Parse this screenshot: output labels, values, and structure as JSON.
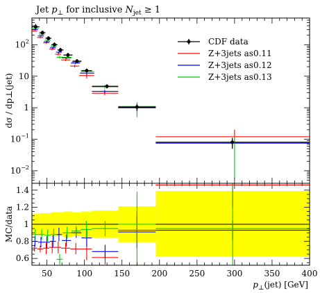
{
  "chart_data": [
    {
      "type": "scatter",
      "panel": "main",
      "title": "Jet p⊥ for inclusive Nⱼₑₜ ≥ 1",
      "title_parts": [
        "Jet ",
        "p",
        "⊥",
        " for inclusive ",
        "N",
        "jet",
        " ≥ 1"
      ],
      "ylabel": "dσ / dp⊥(jet)",
      "yscale": "log",
      "ylim": [
        0.004,
        700
      ],
      "xlim": [
        30,
        400
      ],
      "ytick_labels": [
        "10⁻²",
        "10⁻¹",
        "1",
        "10",
        "10²"
      ],
      "y_ticks": [
        {
          "value": 0.01,
          "base": "10",
          "exp": "−2"
        },
        {
          "value": 0.1,
          "base": "10",
          "exp": "−1"
        },
        {
          "value": 1,
          "base": "1",
          "exp": ""
        },
        {
          "value": 10,
          "base": "10",
          "exp": ""
        },
        {
          "value": 100,
          "base": "10",
          "exp": "2"
        }
      ],
      "legend_position": "top-right",
      "series": [
        {
          "name": "CDF data",
          "color": "#000000",
          "marker": "circle",
          "points": [
            {
              "x": 35,
              "xlo": 30,
              "xhi": 40,
              "y": 370,
              "ylo": 300,
              "yhi": 450
            },
            {
              "x": 44,
              "xlo": 40,
              "xhi": 48,
              "y": 240,
              "ylo": 205,
              "yhi": 280
            },
            {
              "x": 52,
              "xlo": 48,
              "xhi": 56,
              "y": 160,
              "ylo": 135,
              "yhi": 185
            },
            {
              "x": 60,
              "xlo": 56,
              "xhi": 64,
              "y": 100,
              "ylo": 85,
              "yhi": 118
            },
            {
              "x": 68,
              "xlo": 64,
              "xhi": 72,
              "y": 68,
              "ylo": 58,
              "yhi": 80
            },
            {
              "x": 78,
              "xlo": 72,
              "xhi": 84,
              "y": 47,
              "ylo": 40,
              "yhi": 55
            },
            {
              "x": 90,
              "xlo": 84,
              "xhi": 96,
              "y": 30,
              "ylo": 26,
              "yhi": 35
            },
            {
              "x": 103,
              "xlo": 96,
              "xhi": 110,
              "y": 15,
              "ylo": 13,
              "yhi": 17.5
            },
            {
              "x": 130,
              "xlo": 110,
              "xhi": 145,
              "y": 4.8,
              "ylo": 4.1,
              "yhi": 5.5
            },
            {
              "x": 170,
              "xlo": 145,
              "xhi": 195,
              "y": 1.05,
              "ylo": 0.8,
              "yhi": 1.3
            },
            {
              "x": 297,
              "xlo": 195,
              "xhi": 400,
              "y": 0.08,
              "ylo": 0.05,
              "yhi": 0.11
            }
          ]
        },
        {
          "name": "Z+3jets as0.11",
          "color": "#ff0000",
          "points": [
            {
              "x": 33,
              "xlo": 30,
              "xhi": 37,
              "y": 270,
              "ylo": 260,
              "yhi": 280
            },
            {
              "x": 41,
              "xlo": 37,
              "xhi": 45,
              "y": 170,
              "ylo": 160,
              "yhi": 180
            },
            {
              "x": 49,
              "xlo": 45,
              "xhi": 53,
              "y": 115,
              "ylo": 108,
              "yhi": 122
            },
            {
              "x": 57,
              "xlo": 53,
              "xhi": 61,
              "y": 72,
              "ylo": 66,
              "yhi": 78
            },
            {
              "x": 65,
              "xlo": 61,
              "xhi": 69,
              "y": 50,
              "ylo": 45,
              "yhi": 55
            },
            {
              "x": 75,
              "xlo": 69,
              "xhi": 81,
              "y": 33,
              "ylo": 30,
              "yhi": 36
            },
            {
              "x": 87,
              "xlo": 81,
              "xhi": 93,
              "y": 21,
              "ylo": 19,
              "yhi": 23
            },
            {
              "x": 103,
              "xlo": 93,
              "xhi": 113,
              "y": 10.5,
              "ylo": 8.5,
              "yhi": 12.5
            },
            {
              "x": 127,
              "xlo": 110,
              "xhi": 145,
              "y": 2.9,
              "ylo": 2.5,
              "yhi": 3.3
            },
            {
              "x": 170,
              "xlo": 145,
              "xhi": 195,
              "y": 1.0,
              "ylo": 0.75,
              "yhi": 1.25
            },
            {
              "x": 300,
              "xlo": 195,
              "xhi": 400,
              "y": 0.12,
              "ylo": 0.08,
              "yhi": 0.2
            }
          ]
        },
        {
          "name": "Z+3jets as0.12",
          "color": "#0000ff",
          "points": [
            {
              "x": 34,
              "xlo": 30,
              "xhi": 38,
              "y": 300,
              "ylo": 285,
              "yhi": 315
            },
            {
              "x": 42,
              "xlo": 38,
              "xhi": 46,
              "y": 190,
              "ylo": 180,
              "yhi": 200
            },
            {
              "x": 50,
              "xlo": 46,
              "xhi": 54,
              "y": 125,
              "ylo": 115,
              "yhi": 135
            },
            {
              "x": 58,
              "xlo": 54,
              "xhi": 62,
              "y": 80,
              "ylo": 74,
              "yhi": 86
            },
            {
              "x": 66,
              "xlo": 62,
              "xhi": 70,
              "y": 58,
              "ylo": 53,
              "yhi": 63
            },
            {
              "x": 76,
              "xlo": 70,
              "xhi": 82,
              "y": 38,
              "ylo": 35,
              "yhi": 41
            },
            {
              "x": 88,
              "xlo": 82,
              "xhi": 94,
              "y": 26,
              "ylo": 24,
              "yhi": 28
            },
            {
              "x": 103,
              "xlo": 94,
              "xhi": 113,
              "y": 12.5,
              "ylo": 11,
              "yhi": 14
            },
            {
              "x": 127,
              "xlo": 110,
              "xhi": 145,
              "y": 3.3,
              "ylo": 2.9,
              "yhi": 3.7
            },
            {
              "x": 170,
              "xlo": 145,
              "xhi": 195,
              "y": 1.0,
              "ylo": 0.75,
              "yhi": 1.25
            },
            {
              "x": 297,
              "xlo": 195,
              "xhi": 400,
              "y": 0.075,
              "ylo": 0.055,
              "yhi": 0.1
            }
          ]
        },
        {
          "name": "Z+3jets as0.13",
          "color": "#00cc00",
          "points": [
            {
              "x": 35,
              "xlo": 30,
              "xhi": 39,
              "y": 330,
              "ylo": 310,
              "yhi": 350
            },
            {
              "x": 43,
              "xlo": 39,
              "xhi": 47,
              "y": 215,
              "ylo": 200,
              "yhi": 230
            },
            {
              "x": 51,
              "xlo": 47,
              "xhi": 55,
              "y": 140,
              "ylo": 130,
              "yhi": 150
            },
            {
              "x": 59,
              "xlo": 55,
              "xhi": 63,
              "y": 90,
              "ylo": 83,
              "yhi": 97
            },
            {
              "x": 67,
              "xlo": 63,
              "xhi": 71,
              "y": 40,
              "ylo": 36,
              "yhi": 44
            },
            {
              "x": 77,
              "xlo": 71,
              "xhi": 83,
              "y": 40,
              "ylo": 36,
              "yhi": 44
            },
            {
              "x": 89,
              "xlo": 83,
              "xhi": 95,
              "y": 28,
              "ylo": 25,
              "yhi": 31
            },
            {
              "x": 103,
              "xlo": 95,
              "xhi": 113,
              "y": 14,
              "ylo": 12.5,
              "yhi": 15.5
            },
            {
              "x": 127,
              "xlo": 110,
              "xhi": 145,
              "y": 4.6,
              "ylo": 4.0,
              "yhi": 5.2
            },
            {
              "x": 170,
              "xlo": 145,
              "xhi": 195,
              "y": 1.1,
              "ylo": 0.5,
              "yhi": 1.5
            },
            {
              "x": 300,
              "xlo": 195,
              "xhi": 400,
              "y": 0.078,
              "ylo": 0.0055,
              "yhi": 0.12
            }
          ]
        }
      ]
    },
    {
      "type": "scatter",
      "panel": "ratio",
      "ylabel": "MC/data",
      "xlabel": "p⊥(jet) [GeV]",
      "xlabel_parts": [
        "p",
        "⊥",
        "(jet) [GeV]"
      ],
      "xlim": [
        30,
        400
      ],
      "ylim": [
        0.52,
        1.48
      ],
      "x_ticks": [
        50,
        100,
        150,
        200,
        250,
        300,
        350,
        400
      ],
      "y_ticks": [
        0.6,
        0.8,
        1,
        1.2,
        1.4
      ],
      "ytick_labels": [
        "0.6",
        "0.8",
        "1",
        "1.2",
        "1.4"
      ],
      "reference_line": 1.0,
      "band_color": "#ffff00",
      "data_uncertainty_band": [
        {
          "xlo": 30,
          "xhi": 40,
          "lo": 0.88,
          "hi": 1.12
        },
        {
          "xlo": 40,
          "xhi": 48,
          "lo": 0.87,
          "hi": 1.13
        },
        {
          "xlo": 48,
          "xhi": 56,
          "lo": 0.87,
          "hi": 1.13
        },
        {
          "xlo": 56,
          "xhi": 64,
          "lo": 0.86,
          "hi": 1.14
        },
        {
          "xlo": 64,
          "xhi": 72,
          "lo": 0.86,
          "hi": 1.14
        },
        {
          "xlo": 72,
          "xhi": 84,
          "lo": 0.85,
          "hi": 1.15
        },
        {
          "xlo": 84,
          "xhi": 96,
          "lo": 0.86,
          "hi": 1.14
        },
        {
          "xlo": 96,
          "xhi": 110,
          "lo": 0.85,
          "hi": 1.15
        },
        {
          "xlo": 110,
          "xhi": 145,
          "lo": 0.84,
          "hi": 1.16
        },
        {
          "xlo": 145,
          "xhi": 195,
          "lo": 0.79,
          "hi": 1.21
        },
        {
          "xlo": 195,
          "xhi": 400,
          "lo": 0.62,
          "hi": 1.39
        }
      ],
      "series": [
        {
          "name": "Z+3jets as0.11",
          "color": "#ff0000",
          "points": [
            {
              "xlo": 30,
              "xhi": 37,
              "y": 0.72,
              "ylo": 0.68,
              "yhi": 0.76
            },
            {
              "xlo": 37,
              "xhi": 45,
              "y": 0.71,
              "ylo": 0.67,
              "yhi": 0.75
            },
            {
              "xlo": 45,
              "xhi": 53,
              "y": 0.72,
              "ylo": 0.65,
              "yhi": 0.78
            },
            {
              "xlo": 53,
              "xhi": 61,
              "y": 0.73,
              "ylo": 0.66,
              "yhi": 0.8
            },
            {
              "xlo": 61,
              "xhi": 69,
              "y": 0.73,
              "ylo": 0.66,
              "yhi": 0.8
            },
            {
              "xlo": 69,
              "xhi": 81,
              "y": 0.72,
              "ylo": 0.66,
              "yhi": 0.78
            },
            {
              "xlo": 81,
              "xhi": 96,
              "y": 0.71,
              "ylo": 0.65,
              "yhi": 0.78
            },
            {
              "xlo": 96,
              "xhi": 110,
              "y": 0.71,
              "ylo": 0.58,
              "yhi": 0.84
            },
            {
              "xlo": 110,
              "xhi": 145,
              "y": 0.61,
              "ylo": 0.53,
              "yhi": 0.69
            },
            {
              "xlo": 145,
              "xhi": 195,
              "y": 0.93,
              "ylo": 0.72,
              "yhi": 1.15
            },
            {
              "xlo": 195,
              "xhi": 400,
              "y": 1.46,
              "ylo": 1.2,
              "yhi": 1.48
            }
          ]
        },
        {
          "name": "Z+3jets as0.12",
          "color": "#0000ff",
          "points": [
            {
              "xlo": 30,
              "xhi": 38,
              "y": 0.8,
              "ylo": 0.74,
              "yhi": 0.86
            },
            {
              "xlo": 38,
              "xhi": 46,
              "y": 0.79,
              "ylo": 0.73,
              "yhi": 0.85
            },
            {
              "xlo": 46,
              "xhi": 54,
              "y": 0.79,
              "ylo": 0.72,
              "yhi": 0.86
            },
            {
              "xlo": 54,
              "xhi": 62,
              "y": 0.8,
              "ylo": 0.73,
              "yhi": 0.87
            },
            {
              "xlo": 62,
              "xhi": 70,
              "y": 0.88,
              "ylo": 0.8,
              "yhi": 0.96
            },
            {
              "xlo": 70,
              "xhi": 82,
              "y": 0.81,
              "ylo": 0.74,
              "yhi": 0.88
            },
            {
              "xlo": 82,
              "xhi": 96,
              "y": 0.9,
              "ylo": 0.84,
              "yhi": 0.96
            },
            {
              "xlo": 96,
              "xhi": 110,
              "y": 0.84,
              "ylo": 0.74,
              "yhi": 0.94
            },
            {
              "xlo": 110,
              "xhi": 145,
              "y": 0.68,
              "ylo": 0.6,
              "yhi": 0.76
            },
            {
              "xlo": 145,
              "xhi": 195,
              "y": 0.91,
              "ylo": 0.72,
              "yhi": 1.1
            },
            {
              "xlo": 195,
              "xhi": 400,
              "y": 0.93,
              "ylo": 0.82,
              "yhi": 1.04
            }
          ]
        },
        {
          "name": "Z+3jets as0.13",
          "color": "#00cc00",
          "points": [
            {
              "xlo": 30,
              "xhi": 39,
              "y": 0.88,
              "ylo": 0.82,
              "yhi": 0.94
            },
            {
              "xlo": 39,
              "xhi": 47,
              "y": 0.88,
              "ylo": 0.82,
              "yhi": 0.94
            },
            {
              "xlo": 47,
              "xhi": 55,
              "y": 0.87,
              "ylo": 0.8,
              "yhi": 0.94
            },
            {
              "xlo": 55,
              "xhi": 63,
              "y": 0.88,
              "ylo": 0.81,
              "yhi": 0.95
            },
            {
              "xlo": 63,
              "xhi": 71,
              "y": 0.59,
              "ylo": 0.53,
              "yhi": 0.65
            },
            {
              "xlo": 71,
              "xhi": 83,
              "y": 0.9,
              "ylo": 0.83,
              "yhi": 0.97
            },
            {
              "xlo": 83,
              "xhi": 95,
              "y": 0.92,
              "ylo": 0.86,
              "yhi": 0.98
            },
            {
              "xlo": 95,
              "xhi": 110,
              "y": 0.94,
              "ylo": 0.84,
              "yhi": 1.04
            },
            {
              "xlo": 110,
              "xhi": 145,
              "y": 0.95,
              "ylo": 0.86,
              "yhi": 1.04
            },
            {
              "xlo": 145,
              "xhi": 195,
              "y": 1.0,
              "ylo": 0.52,
              "yhi": 1.38
            },
            {
              "xlo": 195,
              "xhi": 400,
              "y": 0.95,
              "ylo": 0.52,
              "yhi": 1.48
            }
          ]
        }
      ]
    }
  ]
}
